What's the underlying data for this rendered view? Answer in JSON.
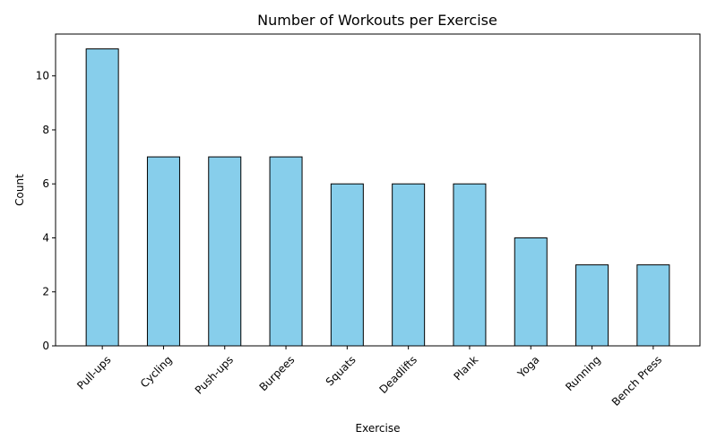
{
  "chart_data": {
    "type": "bar",
    "title": "Number of Workouts per Exercise",
    "xlabel": "Exercise",
    "ylabel": "Count",
    "categories": [
      "Pull-ups",
      "Cycling",
      "Push-ups",
      "Burpees",
      "Squats",
      "Deadlifts",
      "Plank",
      "Yoga",
      "Running",
      "Bench Press"
    ],
    "values": [
      11,
      7,
      7,
      7,
      6,
      6,
      6,
      4,
      3,
      3
    ],
    "ylim": [
      0,
      11.55
    ],
    "yticks": [
      0,
      2,
      4,
      6,
      8,
      10
    ],
    "grid": false,
    "legend": "none",
    "bar_color": "#87ceeb",
    "edge_color": "#000000",
    "xtick_rotation": 45
  }
}
